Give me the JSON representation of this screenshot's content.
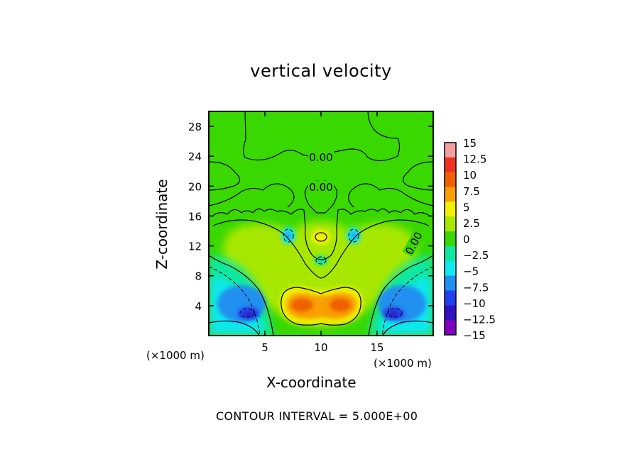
{
  "chart_data": {
    "type": "heatmap",
    "title": "vertical velocity",
    "xlabel": "X-coordinate",
    "ylabel": "Z-coordinate",
    "x_unit_labels": [
      "(×1000 m)",
      "(×1000 m)"
    ],
    "xlim": [
      0,
      20
    ],
    "ylim": [
      0,
      30
    ],
    "xticks": [
      5,
      10,
      15
    ],
    "xtick_labels": [
      "5",
      "10",
      "15"
    ],
    "yticks": [
      4,
      8,
      12,
      16,
      20,
      24,
      28
    ],
    "ytick_labels": [
      "4",
      "8",
      "12",
      "16",
      "20",
      "24",
      "28"
    ],
    "colorbar": {
      "levels": [
        15,
        12.5,
        10,
        7.5,
        5,
        2.5,
        0,
        -2.5,
        -5,
        -7.5,
        -10,
        -12.5,
        -15
      ],
      "labels": [
        "15",
        "12.5",
        "10",
        "7.5",
        "5",
        "2.5",
        "0",
        "−2.5",
        "−5",
        "−7.5",
        "−10",
        "−12.5",
        "−15"
      ],
      "colors": [
        "#f4a0a0",
        "#f03020",
        "#f06000",
        "#f8a000",
        "#f0f000",
        "#a8e800",
        "#38d800",
        "#10e8a0",
        "#10e8f0",
        "#2090f0",
        "#2040f0",
        "#3010c0",
        "#8000c0"
      ]
    },
    "contour_labels": [
      "0.00",
      "0.00",
      "0.00"
    ],
    "contour_interval_text": "CONTOUR INTERVAL = 5.000E+00",
    "features": [
      {
        "kind": "updraft-max",
        "x": 10,
        "z": 4,
        "value": 8
      },
      {
        "kind": "updraft-cell",
        "x": 10,
        "z": 13,
        "value": 5
      },
      {
        "kind": "downdraft-min",
        "x": 4,
        "z": 3,
        "value": -12
      },
      {
        "kind": "downdraft-min",
        "x": 16,
        "z": 3,
        "value": -12
      },
      {
        "kind": "downdraft-cell",
        "x": 7,
        "z": 13,
        "value": -5
      },
      {
        "kind": "downdraft-cell",
        "x": 13,
        "z": 13,
        "value": -5
      },
      {
        "kind": "downdraft-cell",
        "x": 10,
        "z": 10,
        "value": -2.5
      }
    ]
  }
}
